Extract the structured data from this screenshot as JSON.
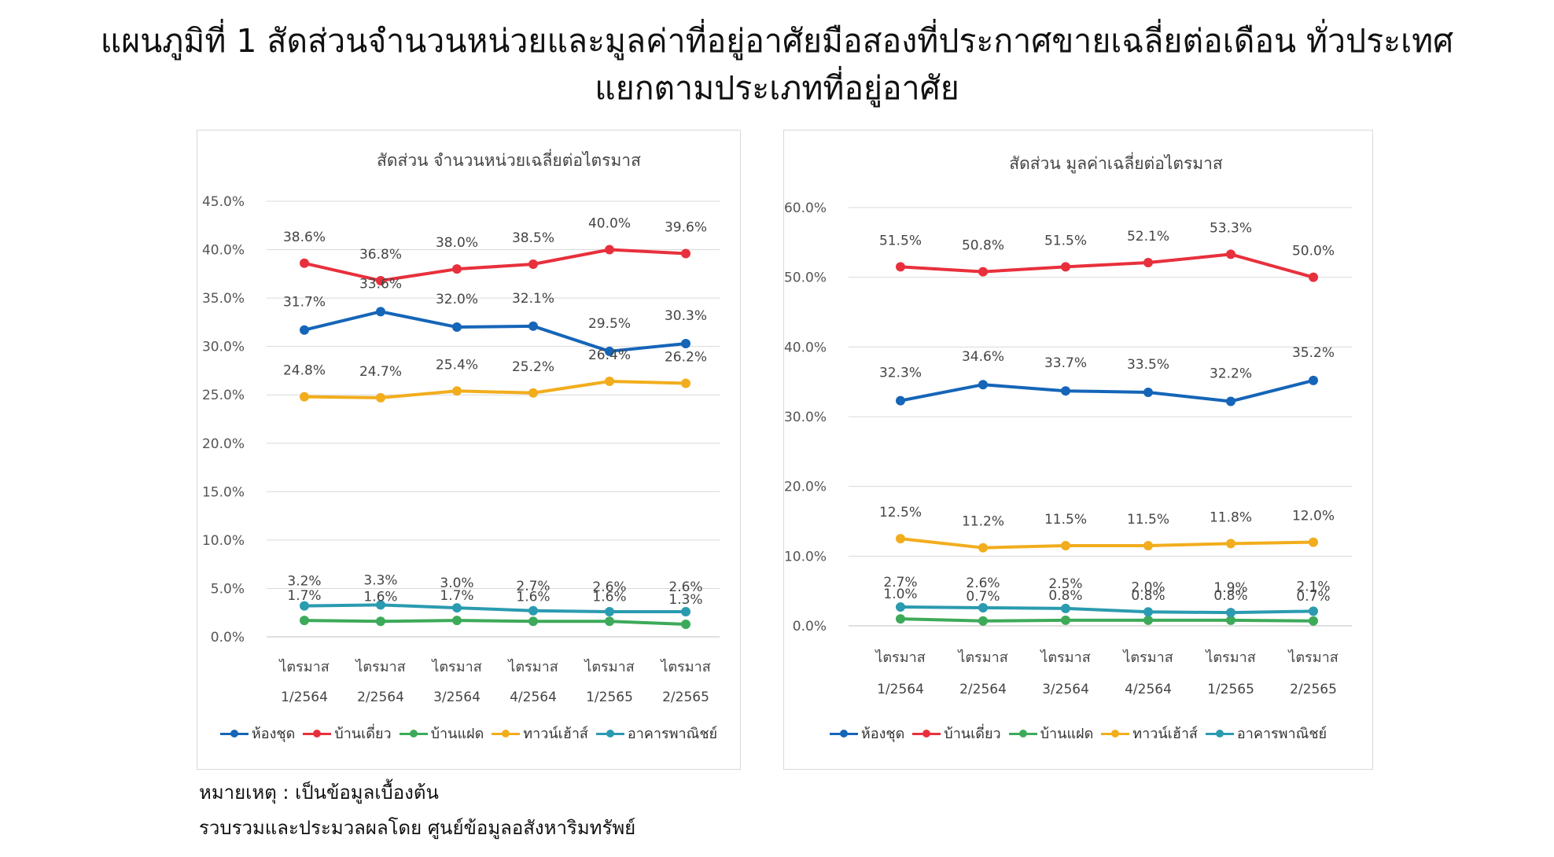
{
  "page": {
    "title_line1": "แผนภูมิที่ 1 สัดส่วนจำนวนหน่วยและมูลค่าที่อยู่อาศัยมือสองที่ประกาศขายเฉลี่ยต่อเดือน ทั่วประเทศ",
    "title_line2": "แยกตามประเภทที่อยู่อาศัย",
    "note": "หมายเหตุ : เป็นข้อมูลเบื้องต้น",
    "source": "รวบรวมและประมวลผลโดย ศูนย์ข้อมูลอสังหาริมทรัพย์"
  },
  "colors": {
    "ห้องชุด": "#1565b8",
    "บ้านเดี่ยว": "#e8303c",
    "บ้านแฝด": "#3daa5a",
    "ทาวน์เฮ้าส์": "#f2ad1d",
    "อาคารพาณิชย์": "#2a9bb0"
  },
  "chart_data": [
    {
      "type": "line",
      "title": "สัดส่วน จำนวนหน่วยเฉลี่ยต่อไตรมาส",
      "categories": [
        [
          "ไตรมาส",
          "1/2564"
        ],
        [
          "ไตรมาส",
          "2/2564"
        ],
        [
          "ไตรมาส",
          "3/2564"
        ],
        [
          "ไตรมาส",
          "4/2564"
        ],
        [
          "ไตรมาส",
          "1/2565"
        ],
        [
          "ไตรมาส",
          "2/2565"
        ]
      ],
      "ylim": [
        0,
        45
      ],
      "yticks": [
        0,
        5,
        10,
        15,
        20,
        25,
        30,
        35,
        40,
        45
      ],
      "grid": true,
      "legend": "bottom",
      "series": [
        {
          "name": "ห้องชุด",
          "values": [
            31.7,
            33.6,
            32.0,
            32.1,
            29.5,
            30.3
          ]
        },
        {
          "name": "บ้านเดี่ยว",
          "values": [
            38.6,
            36.8,
            38.0,
            38.5,
            40.0,
            39.6
          ]
        },
        {
          "name": "บ้านแฝด",
          "values": [
            1.7,
            1.6,
            1.7,
            1.6,
            1.6,
            1.3
          ]
        },
        {
          "name": "ทาวน์เฮ้าส์",
          "values": [
            24.8,
            24.7,
            25.4,
            25.2,
            26.4,
            26.2
          ]
        },
        {
          "name": "อาคารพาณิชย์",
          "values": [
            3.2,
            3.3,
            3.0,
            2.7,
            2.6,
            2.6
          ]
        }
      ]
    },
    {
      "type": "line",
      "title": "สัดส่วน มูลค่าเฉลี่ยต่อไตรมาส",
      "categories": [
        [
          "ไตรมาส",
          "1/2564"
        ],
        [
          "ไตรมาส",
          "2/2564"
        ],
        [
          "ไตรมาส",
          "3/2564"
        ],
        [
          "ไตรมาส",
          "4/2564"
        ],
        [
          "ไตรมาส",
          "1/2565"
        ],
        [
          "ไตรมาส",
          "2/2565"
        ]
      ],
      "ylim": [
        0,
        60
      ],
      "yticks": [
        0,
        10,
        20,
        30,
        40,
        50,
        60
      ],
      "grid": true,
      "legend": "bottom",
      "series": [
        {
          "name": "ห้องชุด",
          "values": [
            32.3,
            34.6,
            33.7,
            33.5,
            32.2,
            35.2
          ]
        },
        {
          "name": "บ้านเดี่ยว",
          "values": [
            51.5,
            50.8,
            51.5,
            52.1,
            53.3,
            50.0
          ]
        },
        {
          "name": "บ้านแฝด",
          "values": [
            1.0,
            0.7,
            0.8,
            0.8,
            0.8,
            0.7
          ]
        },
        {
          "name": "ทาวน์เฮ้าส์",
          "values": [
            12.5,
            11.2,
            11.5,
            11.5,
            11.8,
            12.0
          ]
        },
        {
          "name": "อาคารพาณิชย์",
          "values": [
            2.7,
            2.6,
            2.5,
            2.0,
            1.9,
            2.1
          ]
        }
      ]
    }
  ]
}
